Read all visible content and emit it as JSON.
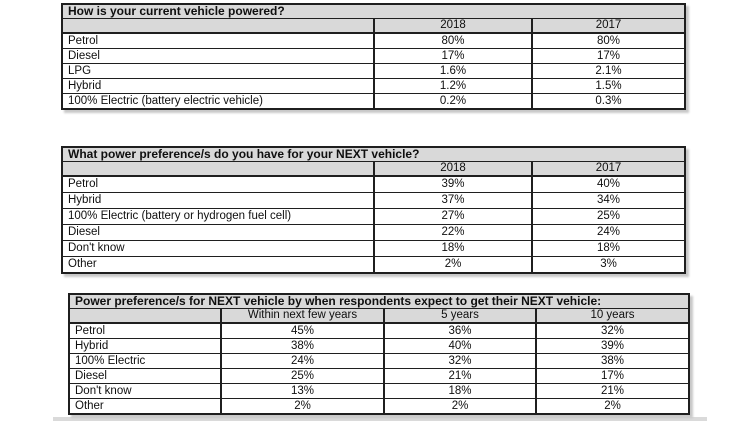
{
  "page": {
    "background": "#ffffff"
  },
  "colors": {
    "table_header_bg": "#d9d9d9",
    "table_border": "#1f1f1f",
    "text": "#0f0f0f",
    "scan_shadow": "#c6c6c6"
  },
  "tables": [
    {
      "title": "How is your current vehicle powered?",
      "columns": [
        "2018",
        "2017"
      ],
      "rows": [
        {
          "label": "Petrol",
          "values": [
            "80%",
            "80%"
          ]
        },
        {
          "label": "Diesel",
          "values": [
            "17%",
            "17%"
          ]
        },
        {
          "label": "LPG",
          "values": [
            "1.6%",
            "2.1%"
          ]
        },
        {
          "label": "Hybrid",
          "values": [
            "1.2%",
            "1.5%"
          ]
        },
        {
          "label": "100% Electric (battery electric vehicle)",
          "values": [
            "0.2%",
            "0.3%"
          ]
        }
      ]
    },
    {
      "title": "What power preference/s do you have for your NEXT vehicle?",
      "columns": [
        "2018",
        "2017"
      ],
      "rows": [
        {
          "label": "Petrol",
          "values": [
            "39%",
            "40%"
          ]
        },
        {
          "label": "Hybrid",
          "values": [
            "37%",
            "34%"
          ]
        },
        {
          "label": "100% Electric (battery or hydrogen fuel cell)",
          "values": [
            "27%",
            "25%"
          ]
        },
        {
          "label": "Diesel",
          "values": [
            "22%",
            "24%"
          ]
        },
        {
          "label": "Don't know",
          "values": [
            "18%",
            "18%"
          ]
        },
        {
          "label": "Other",
          "values": [
            "2%",
            "3%"
          ]
        }
      ]
    },
    {
      "title": "Power preference/s for NEXT vehicle by when respondents expect to get their NEXT vehicle:",
      "columns": [
        "Within next few years",
        "5 years",
        "10 years"
      ],
      "rows": [
        {
          "label": "Petrol",
          "values": [
            "45%",
            "36%",
            "32%"
          ]
        },
        {
          "label": "Hybrid",
          "values": [
            "38%",
            "40%",
            "39%"
          ]
        },
        {
          "label": "100% Electric",
          "values": [
            "24%",
            "32%",
            "38%"
          ]
        },
        {
          "label": "Diesel",
          "values": [
            "25%",
            "21%",
            "17%"
          ]
        },
        {
          "label": "Don't know",
          "values": [
            "13%",
            "18%",
            "21%"
          ]
        },
        {
          "label": "Other",
          "values": [
            "2%",
            "2%",
            "2%"
          ]
        }
      ]
    }
  ],
  "chart_data": [
    {
      "type": "table",
      "title": "How is your current vehicle powered?",
      "columns": [
        "",
        "2018",
        "2017"
      ],
      "rows": [
        [
          "Petrol",
          "80%",
          "80%"
        ],
        [
          "Diesel",
          "17%",
          "17%"
        ],
        [
          "LPG",
          "1.6%",
          "2.1%"
        ],
        [
          "Hybrid",
          "1.2%",
          "1.5%"
        ],
        [
          "100% Electric (battery electric vehicle)",
          "0.2%",
          "0.3%"
        ]
      ]
    },
    {
      "type": "table",
      "title": "What power preference/s do you have for your NEXT vehicle?",
      "columns": [
        "",
        "2018",
        "2017"
      ],
      "rows": [
        [
          "Petrol",
          "39%",
          "40%"
        ],
        [
          "Hybrid",
          "37%",
          "34%"
        ],
        [
          "100% Electric (battery or hydrogen fuel cell)",
          "27%",
          "25%"
        ],
        [
          "Diesel",
          "22%",
          "24%"
        ],
        [
          "Don't know",
          "18%",
          "18%"
        ],
        [
          "Other",
          "2%",
          "3%"
        ]
      ]
    },
    {
      "type": "table",
      "title": "Power preference/s for NEXT vehicle by when respondents expect to get their NEXT vehicle:",
      "columns": [
        "",
        "Within next few years",
        "5 years",
        "10 years"
      ],
      "rows": [
        [
          "Petrol",
          "45%",
          "36%",
          "32%"
        ],
        [
          "Hybrid",
          "38%",
          "40%",
          "39%"
        ],
        [
          "100% Electric",
          "24%",
          "32%",
          "38%"
        ],
        [
          "Diesel",
          "25%",
          "21%",
          "17%"
        ],
        [
          "Don't know",
          "13%",
          "18%",
          "21%"
        ],
        [
          "Other",
          "2%",
          "2%",
          "2%"
        ]
      ]
    }
  ]
}
